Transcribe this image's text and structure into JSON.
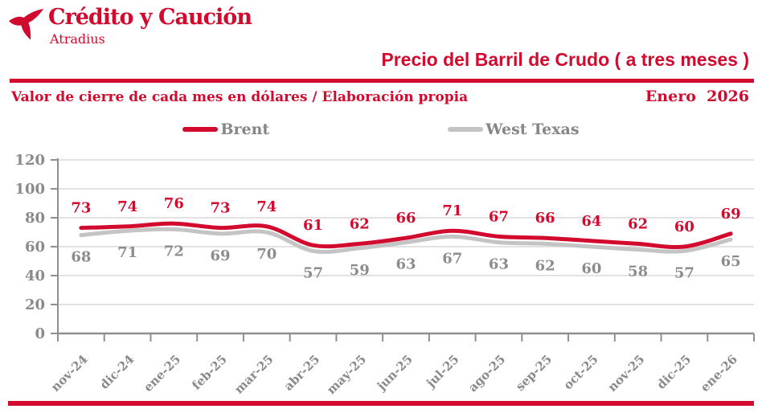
{
  "brand": {
    "logo_title": "Crédito y Caución",
    "logo_subtitle": "Atradius",
    "red": "#d20a2e"
  },
  "header": {
    "title": "Precio del Barril de Crudo ( a tres meses )",
    "subtitle": "Valor de cierre de cada mes en dólares / Elaboración propia",
    "date_label": "Enero  2026"
  },
  "chart_data": {
    "type": "line",
    "title": "Precio del Barril de Crudo ( a tres meses )",
    "categories": [
      "nov-24",
      "dic-24",
      "ene-25",
      "feb-25",
      "mar-25",
      "abr-25",
      "may-25",
      "jun-25",
      "jul-25",
      "ago-25",
      "sep-25",
      "oct-25",
      "nov-25",
      "dic-25",
      "ene-26"
    ],
    "series": [
      {
        "name": "Brent",
        "color": "#d20a2e",
        "label_color": "#d20a2e",
        "values": [
          73,
          74,
          76,
          73,
          74,
          61,
          62,
          66,
          71,
          67,
          66,
          64,
          62,
          60,
          69
        ]
      },
      {
        "name": "West Texas",
        "color": "#c4c4c4",
        "label_color": "#8c8c8c",
        "values": [
          68,
          71,
          72,
          69,
          70,
          57,
          59,
          63,
          67,
          63,
          62,
          60,
          58,
          57,
          65
        ]
      }
    ],
    "ylim": [
      0,
      120
    ],
    "yticks": [
      0,
      20,
      40,
      60,
      80,
      100,
      120
    ],
    "grid": true,
    "data_labels": true,
    "legend_position": "top",
    "axis_color": "#8f8f8f",
    "grid_color": "#d8d8d8",
    "tick_label_color": "#8a8a8a",
    "xlabel": "",
    "ylabel": ""
  }
}
